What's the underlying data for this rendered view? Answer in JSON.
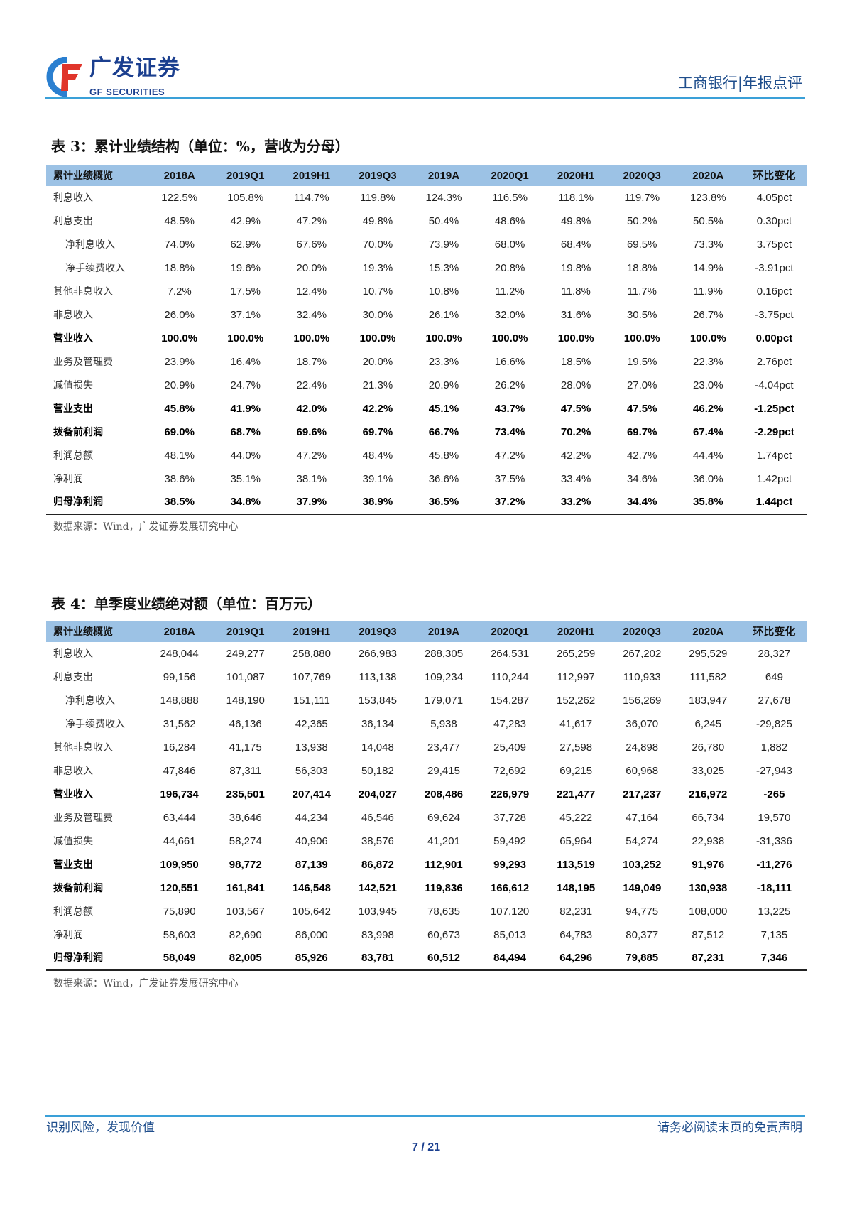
{
  "header": {
    "logo_cn": "广发证券",
    "logo_en": "GF SECURITIES",
    "report_tag": "工商银行|年报点评",
    "brand_colors": {
      "blue": "#1b3f8f",
      "red": "#e0352b",
      "line": "#3aa0d8"
    }
  },
  "table3": {
    "title": "表 3：累计业绩结构（单位：%，营收为分母）",
    "columns": [
      "累计业绩概览",
      "2018A",
      "2019Q1",
      "2019H1",
      "2019Q3",
      "2019A",
      "2020Q1",
      "2020H1",
      "2020Q3",
      "2020A",
      "环比变化"
    ],
    "rows": [
      {
        "label": "利息收入",
        "indent": false,
        "bold": false,
        "values": [
          "122.5%",
          "105.8%",
          "114.7%",
          "119.8%",
          "124.3%",
          "116.5%",
          "118.1%",
          "119.7%",
          "123.8%",
          "4.05pct"
        ]
      },
      {
        "label": "利息支出",
        "indent": false,
        "bold": false,
        "values": [
          "48.5%",
          "42.9%",
          "47.2%",
          "49.8%",
          "50.4%",
          "48.6%",
          "49.8%",
          "50.2%",
          "50.5%",
          "0.30pct"
        ]
      },
      {
        "label": "净利息收入",
        "indent": true,
        "bold": false,
        "values": [
          "74.0%",
          "62.9%",
          "67.6%",
          "70.0%",
          "73.9%",
          "68.0%",
          "68.4%",
          "69.5%",
          "73.3%",
          "3.75pct"
        ]
      },
      {
        "label": "净手续费收入",
        "indent": true,
        "bold": false,
        "values": [
          "18.8%",
          "19.6%",
          "20.0%",
          "19.3%",
          "15.3%",
          "20.8%",
          "19.8%",
          "18.8%",
          "14.9%",
          "-3.91pct"
        ]
      },
      {
        "label": "其他非息收入",
        "indent": false,
        "bold": false,
        "values": [
          "7.2%",
          "17.5%",
          "12.4%",
          "10.7%",
          "10.8%",
          "11.2%",
          "11.8%",
          "11.7%",
          "11.9%",
          "0.16pct"
        ]
      },
      {
        "label": "非息收入",
        "indent": false,
        "bold": false,
        "values": [
          "26.0%",
          "37.1%",
          "32.4%",
          "30.0%",
          "26.1%",
          "32.0%",
          "31.6%",
          "30.5%",
          "26.7%",
          "-3.75pct"
        ]
      },
      {
        "label": "营业收入",
        "indent": false,
        "bold": true,
        "values": [
          "100.0%",
          "100.0%",
          "100.0%",
          "100.0%",
          "100.0%",
          "100.0%",
          "100.0%",
          "100.0%",
          "100.0%",
          "0.00pct"
        ]
      },
      {
        "label": "业务及管理费",
        "indent": false,
        "bold": false,
        "values": [
          "23.9%",
          "16.4%",
          "18.7%",
          "20.0%",
          "23.3%",
          "16.6%",
          "18.5%",
          "19.5%",
          "22.3%",
          "2.76pct"
        ]
      },
      {
        "label": "减值损失",
        "indent": false,
        "bold": false,
        "values": [
          "20.9%",
          "24.7%",
          "22.4%",
          "21.3%",
          "20.9%",
          "26.2%",
          "28.0%",
          "27.0%",
          "23.0%",
          "-4.04pct"
        ]
      },
      {
        "label": "营业支出",
        "indent": false,
        "bold": true,
        "values": [
          "45.8%",
          "41.9%",
          "42.0%",
          "42.2%",
          "45.1%",
          "43.7%",
          "47.5%",
          "47.5%",
          "46.2%",
          "-1.25pct"
        ]
      },
      {
        "label": "拨备前利润",
        "indent": false,
        "bold": true,
        "values": [
          "69.0%",
          "68.7%",
          "69.6%",
          "69.7%",
          "66.7%",
          "73.4%",
          "70.2%",
          "69.7%",
          "67.4%",
          "-2.29pct"
        ]
      },
      {
        "label": "利润总额",
        "indent": false,
        "bold": false,
        "values": [
          "48.1%",
          "44.0%",
          "47.2%",
          "48.4%",
          "45.8%",
          "47.2%",
          "42.2%",
          "42.7%",
          "44.4%",
          "1.74pct"
        ]
      },
      {
        "label": "净利润",
        "indent": false,
        "bold": false,
        "values": [
          "38.6%",
          "35.1%",
          "38.1%",
          "39.1%",
          "36.6%",
          "37.5%",
          "33.4%",
          "34.6%",
          "36.0%",
          "1.42pct"
        ]
      },
      {
        "label": "归母净利润",
        "indent": false,
        "bold": true,
        "values": [
          "38.5%",
          "34.8%",
          "37.9%",
          "38.9%",
          "36.5%",
          "37.2%",
          "33.2%",
          "34.4%",
          "35.8%",
          "1.44pct"
        ]
      }
    ],
    "source": "数据来源：Wind，广发证券发展研究中心"
  },
  "table4": {
    "title": "表 4：单季度业绩绝对额（单位：百万元）",
    "columns": [
      "累计业绩概览",
      "2018A",
      "2019Q1",
      "2019H1",
      "2019Q3",
      "2019A",
      "2020Q1",
      "2020H1",
      "2020Q3",
      "2020A",
      "环比变化"
    ],
    "rows": [
      {
        "label": "利息收入",
        "indent": false,
        "bold": false,
        "values": [
          "248,044",
          "249,277",
          "258,880",
          "266,983",
          "288,305",
          "264,531",
          "265,259",
          "267,202",
          "295,529",
          "28,327"
        ]
      },
      {
        "label": "利息支出",
        "indent": false,
        "bold": false,
        "values": [
          "99,156",
          "101,087",
          "107,769",
          "113,138",
          "109,234",
          "110,244",
          "112,997",
          "110,933",
          "111,582",
          "649"
        ]
      },
      {
        "label": "净利息收入",
        "indent": true,
        "bold": false,
        "values": [
          "148,888",
          "148,190",
          "151,111",
          "153,845",
          "179,071",
          "154,287",
          "152,262",
          "156,269",
          "183,947",
          "27,678"
        ]
      },
      {
        "label": "净手续费收入",
        "indent": true,
        "bold": false,
        "values": [
          "31,562",
          "46,136",
          "42,365",
          "36,134",
          "5,938",
          "47,283",
          "41,617",
          "36,070",
          "6,245",
          "-29,825"
        ]
      },
      {
        "label": "其他非息收入",
        "indent": false,
        "bold": false,
        "values": [
          "16,284",
          "41,175",
          "13,938",
          "14,048",
          "23,477",
          "25,409",
          "27,598",
          "24,898",
          "26,780",
          "1,882"
        ]
      },
      {
        "label": "非息收入",
        "indent": false,
        "bold": false,
        "values": [
          "47,846",
          "87,311",
          "56,303",
          "50,182",
          "29,415",
          "72,692",
          "69,215",
          "60,968",
          "33,025",
          "-27,943"
        ]
      },
      {
        "label": "营业收入",
        "indent": false,
        "bold": true,
        "values": [
          "196,734",
          "235,501",
          "207,414",
          "204,027",
          "208,486",
          "226,979",
          "221,477",
          "217,237",
          "216,972",
          "-265"
        ]
      },
      {
        "label": "业务及管理费",
        "indent": false,
        "bold": false,
        "values": [
          "63,444",
          "38,646",
          "44,234",
          "46,546",
          "69,624",
          "37,728",
          "45,222",
          "47,164",
          "66,734",
          "19,570"
        ]
      },
      {
        "label": "减值损失",
        "indent": false,
        "bold": false,
        "values": [
          "44,661",
          "58,274",
          "40,906",
          "38,576",
          "41,201",
          "59,492",
          "65,964",
          "54,274",
          "22,938",
          "-31,336"
        ]
      },
      {
        "label": "营业支出",
        "indent": false,
        "bold": true,
        "values": [
          "109,950",
          "98,772",
          "87,139",
          "86,872",
          "112,901",
          "99,293",
          "113,519",
          "103,252",
          "91,976",
          "-11,276"
        ]
      },
      {
        "label": "拨备前利润",
        "indent": false,
        "bold": true,
        "values": [
          "120,551",
          "161,841",
          "146,548",
          "142,521",
          "119,836",
          "166,612",
          "148,195",
          "149,049",
          "130,938",
          "-18,111"
        ]
      },
      {
        "label": "利润总额",
        "indent": false,
        "bold": false,
        "values": [
          "75,890",
          "103,567",
          "105,642",
          "103,945",
          "78,635",
          "107,120",
          "82,231",
          "94,775",
          "108,000",
          "13,225"
        ]
      },
      {
        "label": "净利润",
        "indent": false,
        "bold": false,
        "values": [
          "58,603",
          "82,690",
          "86,000",
          "83,998",
          "60,673",
          "85,013",
          "64,783",
          "80,377",
          "87,512",
          "7,135"
        ]
      },
      {
        "label": "归母净利润",
        "indent": false,
        "bold": true,
        "values": [
          "58,049",
          "82,005",
          "85,926",
          "83,781",
          "60,512",
          "84,494",
          "64,296",
          "79,885",
          "87,231",
          "7,346"
        ]
      }
    ],
    "source": "数据来源：Wind，广发证券发展研究中心"
  },
  "footer": {
    "slogan": "识别风险，发现价值",
    "disclaimer": "请务必阅读末页的免责声明",
    "page": "7 / 21"
  }
}
